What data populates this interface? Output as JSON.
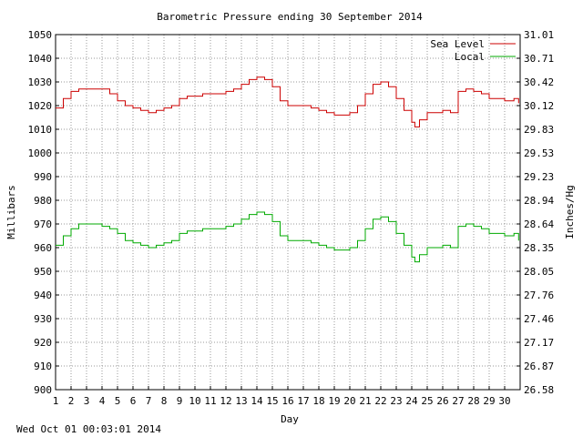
{
  "chart_data": {
    "type": "line",
    "title": "Barometric Pressure ending 30 September 2014",
    "xlabel": "Day",
    "ylabel": "Millibars",
    "y2label": "Inches/Hg",
    "footer": "Wed Oct 01 00:03:01 2014",
    "xlim": [
      1,
      31
    ],
    "ylim": [
      900,
      1050
    ],
    "x_ticks": [
      1,
      2,
      3,
      4,
      5,
      6,
      7,
      8,
      9,
      10,
      11,
      12,
      13,
      14,
      15,
      16,
      17,
      18,
      19,
      20,
      21,
      22,
      23,
      24,
      25,
      26,
      27,
      28,
      29,
      30
    ],
    "y_ticks": [
      900,
      910,
      920,
      930,
      940,
      950,
      960,
      970,
      980,
      990,
      1000,
      1010,
      1020,
      1030,
      1040,
      1050
    ],
    "y2_ticks": [
      "26.58",
      "26.87",
      "27.17",
      "27.46",
      "27.76",
      "28.05",
      "28.35",
      "28.64",
      "28.94",
      "29.23",
      "29.53",
      "29.83",
      "30.12",
      "30.42",
      "30.71",
      "31.01"
    ],
    "grid": true,
    "legend": "top-right",
    "x": [
      1,
      1.5,
      2,
      2.5,
      3,
      3.5,
      4,
      4.5,
      5,
      5.5,
      6,
      6.5,
      7,
      7.5,
      8,
      8.5,
      9,
      9.5,
      10,
      10.5,
      11,
      11.5,
      12,
      12.5,
      13,
      13.5,
      14,
      14.5,
      15,
      15.5,
      16,
      16.5,
      17,
      17.5,
      18,
      18.5,
      19,
      19.5,
      20,
      20.5,
      21,
      21.5,
      22,
      22.5,
      23,
      23.5,
      24,
      24.2,
      24.5,
      25,
      25.5,
      26,
      26.5,
      27,
      27.5,
      28,
      28.5,
      29,
      29.5,
      30,
      30.3,
      30.6,
      30.9
    ],
    "series": [
      {
        "name": "Sea Level",
        "color": "#cc0000",
        "values": [
          1019,
          1023,
          1026,
          1027,
          1027,
          1027,
          1027,
          1025,
          1022,
          1020,
          1019,
          1018,
          1017,
          1018,
          1019,
          1020,
          1023,
          1024,
          1024,
          1025,
          1025,
          1025,
          1026,
          1027,
          1029,
          1031,
          1032,
          1031,
          1028,
          1022,
          1020,
          1020,
          1020,
          1019,
          1018,
          1017,
          1016,
          1016,
          1017,
          1020,
          1025,
          1029,
          1030,
          1028,
          1023,
          1018,
          1013,
          1011,
          1014,
          1017,
          1017,
          1018,
          1017,
          1026,
          1027,
          1026,
          1025,
          1023,
          1023,
          1022,
          1022,
          1023,
          1021
        ],
        "line_width": 1
      },
      {
        "name": "Local",
        "color": "#00aa00",
        "values": [
          961,
          965,
          968,
          970,
          970,
          970,
          969,
          968,
          966,
          963,
          962,
          961,
          960,
          961,
          962,
          963,
          966,
          967,
          967,
          968,
          968,
          968,
          969,
          970,
          972,
          974,
          975,
          974,
          971,
          965,
          963,
          963,
          963,
          962,
          961,
          960,
          959,
          959,
          960,
          963,
          968,
          972,
          973,
          971,
          966,
          961,
          956,
          954,
          957,
          960,
          960,
          961,
          960,
          969,
          970,
          969,
          968,
          966,
          966,
          965,
          965,
          966,
          963
        ],
        "line_width": 1
      }
    ]
  }
}
